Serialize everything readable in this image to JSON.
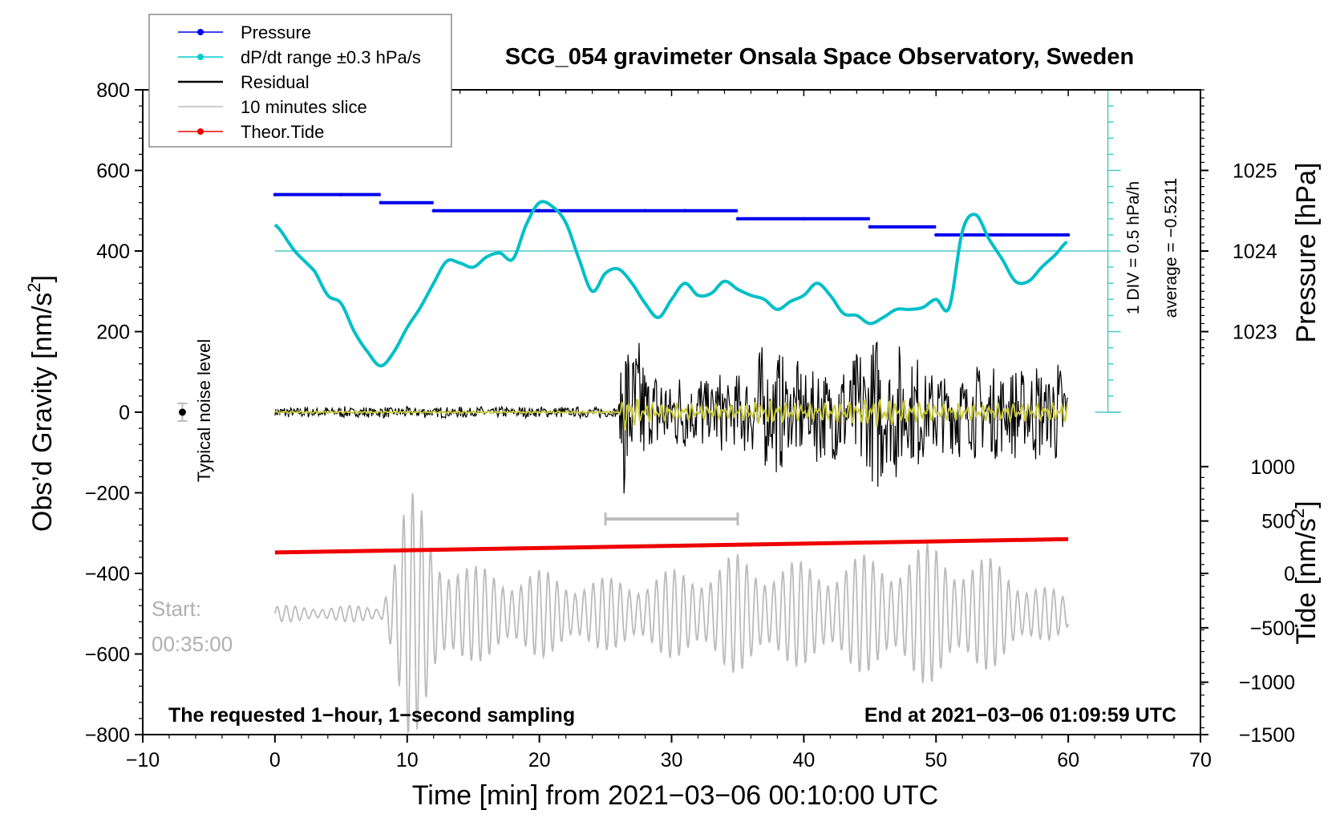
{
  "chart_data": {
    "type": "line",
    "title": "SCG_054 gravimeter Onsala Space Observatory, Sweden",
    "xlabel": "Time [min] from 2021−03−06 00:10:00 UTC",
    "ylabel_left": "Obs’d Gravity [nm/s",
    "ylabel_left_sup": "2",
    "ylabel_left_end": "]",
    "ylabel_right_pressure": "Pressure [hPa]",
    "ylabel_right_tide": "Tide [nm/s",
    "ylabel_right_tide_sup": "2",
    "ylabel_right_tide_end": "]",
    "xlim": [
      -10,
      70
    ],
    "ylim": [
      -800,
      800
    ],
    "x_ticks": [
      -10,
      0,
      10,
      20,
      30,
      40,
      50,
      60,
      70
    ],
    "x_tick_labels": [
      "−10",
      "0",
      "10",
      "20",
      "30",
      "40",
      "50",
      "60",
      "70"
    ],
    "y_ticks": [
      800,
      600,
      400,
      200,
      0,
      -200,
      -400,
      -600,
      -800
    ],
    "y_tick_labels": [
      "800",
      "600",
      "400",
      "200",
      "0",
      "−200",
      "−400",
      "−600",
      "−800"
    ],
    "pressure_axis": {
      "ticks": [
        1025,
        1024,
        1023
      ],
      "tick_labels": [
        "1025",
        "1024",
        "1023"
      ],
      "gravity_equivalent": [
        600,
        400,
        200
      ]
    },
    "tide_axis": {
      "ticks": [
        1000,
        500,
        0,
        -500,
        -1000,
        -1500
      ],
      "tick_labels": [
        "1000",
        "500",
        "0",
        "−500",
        "−1000",
        "−1500"
      ],
      "gravity_equivalent": [
        -135,
        -270,
        -400,
        -535,
        -670,
        -800
      ]
    },
    "legend": {
      "placement": "top-left",
      "entries": [
        {
          "label": "Pressure",
          "color": "#0000ee",
          "marker": true
        },
        {
          "label": "dP/dt range ±0.3 hPa/s",
          "color": "#00cccc",
          "marker": true
        },
        {
          "label": "Residual",
          "color": "#000000",
          "marker": false
        },
        {
          "label": "10 minutes slice",
          "color": "#bbbbbb",
          "marker": false
        },
        {
          "label": "Theor.Tide",
          "color": "#ee0000",
          "marker": true
        }
      ]
    },
    "series": [
      {
        "name": "Pressure",
        "color": "#0000ee",
        "x": [
          0,
          5,
          8,
          12,
          20,
          28,
          31,
          35,
          40,
          45,
          50,
          55,
          60
        ],
        "y": [
          540,
          540,
          520,
          500,
          500,
          500,
          500,
          480,
          480,
          460,
          440,
          440,
          440
        ]
      },
      {
        "name": "dP/dt range ±0.3 hPa/s",
        "color": "#00bfc8",
        "x": [
          0,
          1.5,
          3,
          4,
          5,
          6,
          7,
          8,
          9,
          10,
          11,
          12,
          13,
          14,
          15,
          16,
          17,
          18,
          19,
          20,
          21,
          22,
          23,
          24,
          25,
          26,
          27,
          28,
          29,
          30,
          31,
          32,
          33,
          34,
          35,
          36,
          37,
          38,
          39,
          40,
          41,
          42,
          43,
          44,
          45,
          46,
          47,
          48,
          49,
          50,
          51,
          52,
          53,
          54,
          55,
          56,
          57,
          58,
          59,
          60
        ],
        "y": [
          465,
          400,
          350,
          290,
          270,
          200,
          150,
          115,
          150,
          210,
          260,
          320,
          375,
          370,
          360,
          385,
          395,
          380,
          465,
          520,
          510,
          470,
          380,
          300,
          345,
          355,
          320,
          270,
          235,
          280,
          320,
          290,
          295,
          325,
          305,
          290,
          280,
          255,
          275,
          290,
          320,
          290,
          245,
          240,
          220,
          235,
          255,
          255,
          260,
          280,
          260,
          450,
          490,
          430,
          380,
          325,
          325,
          360,
          390,
          425
        ]
      },
      {
        "name": "Theor.Tide",
        "color": "#ee0000",
        "x": [
          0,
          60
        ],
        "y": [
          -348,
          -315
        ]
      }
    ],
    "residual_envelope": {
      "color": "#000000",
      "x": [
        0,
        26,
        26.5,
        27,
        28,
        30,
        35,
        37,
        40,
        44,
        45,
        50,
        55,
        60
      ],
      "amplitude": [
        15,
        15,
        280,
        240,
        140,
        110,
        100,
        180,
        120,
        160,
        220,
        120,
        120,
        140
      ]
    },
    "slice_trace": {
      "color": "#bbbbbb",
      "x": [
        0,
        8,
        9,
        10,
        11,
        12,
        15,
        20,
        25,
        30,
        35,
        40,
        45,
        50,
        55,
        60
      ],
      "amplitude": [
        20,
        20,
        180,
        320,
        280,
        200,
        120,
        110,
        90,
        110,
        150,
        130,
        150,
        180,
        130,
        40
      ],
      "offset": -500
    },
    "error_bar": {
      "x": [
        25,
        35
      ],
      "y": -265,
      "label": ""
    },
    "annotations": {
      "noise_label": "Typical noise level",
      "scale_label": "1 DIV = 0.5 hPa/h",
      "average_label": "average = −0.5211",
      "start_label": "Start:",
      "start_time": "00:35:00",
      "footer_left": "The requested 1−hour, 1−second sampling",
      "footer_right": "End at 2021−03−06 01:09:59 UTC"
    }
  }
}
